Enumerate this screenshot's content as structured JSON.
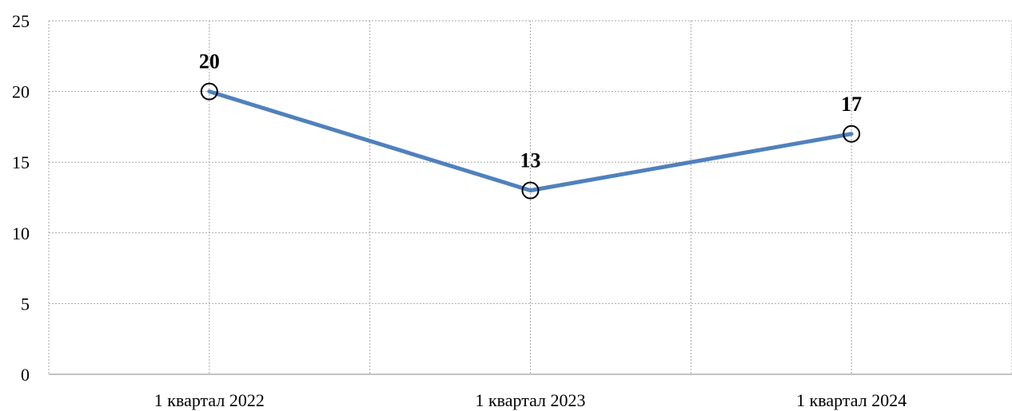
{
  "chart_data": {
    "type": "line",
    "categories": [
      "1 квартал 2022",
      "1 квартал 2023",
      "1 квартал 2024"
    ],
    "series": [
      {
        "values": [
          20,
          13,
          17
        ]
      }
    ],
    "data_labels": [
      "20",
      "13",
      "17"
    ],
    "y_ticks": [
      "0",
      "5",
      "10",
      "15",
      "20",
      "25"
    ],
    "ylim": [
      0,
      25
    ],
    "grid": true,
    "marker": "hollow-circle",
    "colors": {
      "line": "#4f81bd",
      "marker": "#000000",
      "grid": "#a6a6a6",
      "axis": "#868686"
    }
  }
}
